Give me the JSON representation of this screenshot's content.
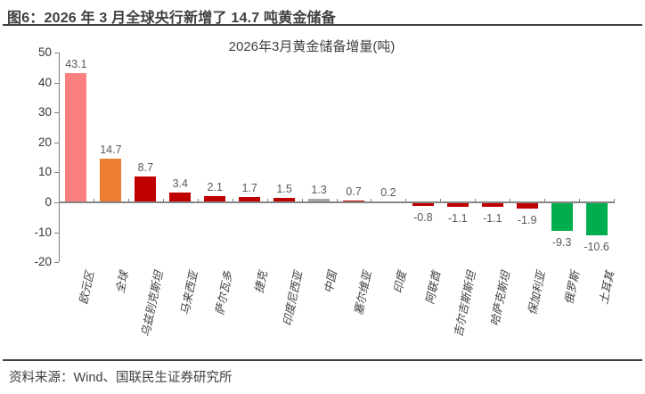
{
  "header": {
    "title": "图6：2026 年 3 月全球央行新增了 14.7 吨黄金储备"
  },
  "footer": {
    "source": "资料来源：Wind、国联民生证券研究所"
  },
  "chart_data": {
    "type": "bar",
    "title": "2026年3月黄金储备增量(吨)",
    "categories": [
      "欧元区",
      "全球",
      "乌兹别克斯坦",
      "马来西亚",
      "萨尔瓦多",
      "捷克",
      "印度尼西亚",
      "中国",
      "塞尔维亚",
      "印度",
      "阿联酋",
      "吉尔吉斯斯坦",
      "哈萨克斯坦",
      "保加利亚",
      "俄罗斯",
      "土耳其"
    ],
    "values": [
      43.1,
      14.7,
      8.7,
      3.4,
      2.1,
      1.7,
      1.5,
      1.3,
      0.7,
      0.2,
      -0.8,
      -1.1,
      -1.1,
      -1.9,
      -9.3,
      -10.6
    ],
    "bar_colors": [
      "#FB8181",
      "#ED7D31",
      "#C00000",
      "#C00000",
      "#C00000",
      "#C00000",
      "#C00000",
      "#A6A6A6",
      "#C00000",
      "#C00000",
      "#C00000",
      "#C00000",
      "#C00000",
      "#C00000",
      "#00AE50",
      "#00AE50"
    ],
    "xlabel": "",
    "ylabel": "",
    "ylim": [
      -20,
      50
    ],
    "yticks": [
      50,
      40,
      30,
      20,
      10,
      0,
      -10,
      -20
    ],
    "grid": false,
    "legend": false,
    "value_label_color": "#595959",
    "axis_color": "#808080"
  }
}
